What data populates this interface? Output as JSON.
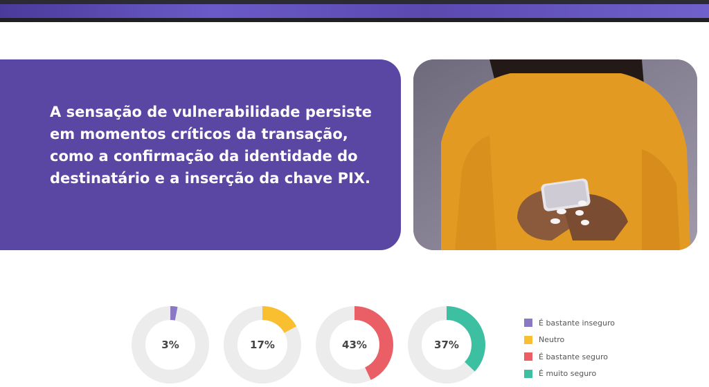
{
  "main": {
    "text": "A sensação de vulnerabilidade persiste em momentos críticos da transação, como a confirmação da identidade do destinatário e a inserção da chave  PIX."
  },
  "colors": {
    "card": "#5a46a3",
    "track": "#ececec"
  },
  "photo": {
    "icon": "woman-using-smartphone-photo"
  },
  "chart_data": {
    "type": "pie",
    "variant": "donut",
    "categories": [
      "É bastante inseguro",
      "Neutro",
      "É bastante seguro",
      "É muito seguro"
    ],
    "values": [
      3,
      17,
      43,
      37
    ],
    "value_labels": [
      "3%",
      "17%",
      "43%",
      "37%"
    ],
    "colors": [
      "#8a78c4",
      "#f9bf30",
      "#ea5f66",
      "#3dbfa1"
    ],
    "legend": "right",
    "title": ""
  }
}
